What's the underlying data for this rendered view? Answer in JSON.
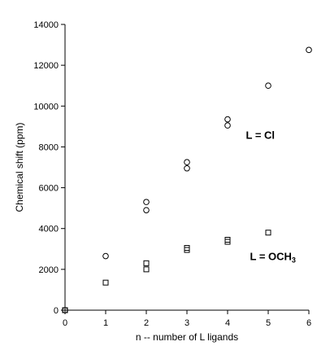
{
  "chart_data": {
    "type": "scatter",
    "xlabel": "n -- number of L ligands",
    "ylabel": "Chemical shift (ppm)",
    "xlim": [
      0,
      6
    ],
    "ylim": [
      0,
      14000
    ],
    "x_ticks": [
      "0",
      "1",
      "2",
      "3",
      "4",
      "5",
      "6"
    ],
    "y_ticks": [
      "0",
      "2000",
      "4000",
      "6000",
      "8000",
      "10000",
      "12000",
      "14000"
    ],
    "grid": false,
    "series": [
      {
        "marker": "circle",
        "points": [
          {
            "x": 0,
            "y": 0
          },
          {
            "x": 1,
            "y": 2650
          },
          {
            "x": 2,
            "y": 4900
          },
          {
            "x": 2,
            "y": 5300
          },
          {
            "x": 3,
            "y": 6950
          },
          {
            "x": 3,
            "y": 7250
          },
          {
            "x": 4,
            "y": 9050
          },
          {
            "x": 4,
            "y": 9350
          },
          {
            "x": 5,
            "y": 11000
          },
          {
            "x": 6,
            "y": 12750
          }
        ]
      },
      {
        "marker": "square",
        "points": [
          {
            "x": 0,
            "y": 0
          },
          {
            "x": 1,
            "y": 1350
          },
          {
            "x": 2,
            "y": 2000
          },
          {
            "x": 2,
            "y": 2300
          },
          {
            "x": 3,
            "y": 2950
          },
          {
            "x": 3,
            "y": 3050
          },
          {
            "x": 4,
            "y": 3350
          },
          {
            "x": 4,
            "y": 3450
          },
          {
            "x": 5,
            "y": 3800
          }
        ]
      }
    ],
    "annotations": {
      "cl": {
        "text": "L = Cl",
        "x": 4.45,
        "y": 8400
      },
      "och3": {
        "main": "L = OCH",
        "sub": "3",
        "x": 4.55,
        "y": 2450
      }
    }
  }
}
